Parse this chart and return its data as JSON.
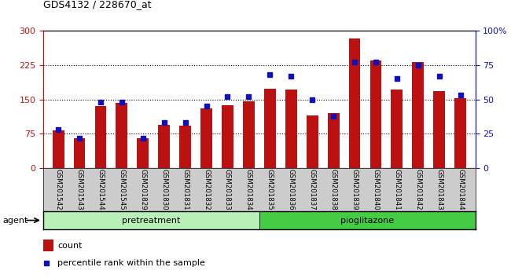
{
  "title": "GDS4132 / 228670_at",
  "categories": [
    "GSM201542",
    "GSM201543",
    "GSM201544",
    "GSM201545",
    "GSM201829",
    "GSM201830",
    "GSM201831",
    "GSM201832",
    "GSM201833",
    "GSM201834",
    "GSM201835",
    "GSM201836",
    "GSM201837",
    "GSM201838",
    "GSM201839",
    "GSM201840",
    "GSM201841",
    "GSM201842",
    "GSM201843",
    "GSM201844"
  ],
  "counts": [
    82,
    65,
    135,
    143,
    65,
    95,
    92,
    130,
    138,
    145,
    173,
    172,
    115,
    120,
    283,
    235,
    172,
    232,
    168,
    152
  ],
  "percentiles": [
    28,
    22,
    48,
    48,
    22,
    33,
    33,
    45,
    52,
    52,
    68,
    67,
    50,
    38,
    77,
    77,
    65,
    75,
    67,
    53
  ],
  "pretreatment_count": 10,
  "pioglitazone_count": 10,
  "left_ylim": [
    0,
    300
  ],
  "right_ylim": [
    0,
    100
  ],
  "left_yticks": [
    0,
    75,
    150,
    225,
    300
  ],
  "right_yticks": [
    0,
    25,
    50,
    75,
    100
  ],
  "bar_color": "#bb1111",
  "dot_color": "#1111bb",
  "pretreatment_color": "#b8f0b8",
  "pioglitazone_color": "#44cc44",
  "agent_label": "agent",
  "pretreatment_label": "pretreatment",
  "pioglitazone_label": "pioglitazone",
  "legend_count": "count",
  "legend_percentile": "percentile rank within the sample",
  "bg_color": "#ffffff",
  "xtick_bg": "#cccccc",
  "gridline_color": "#000000"
}
